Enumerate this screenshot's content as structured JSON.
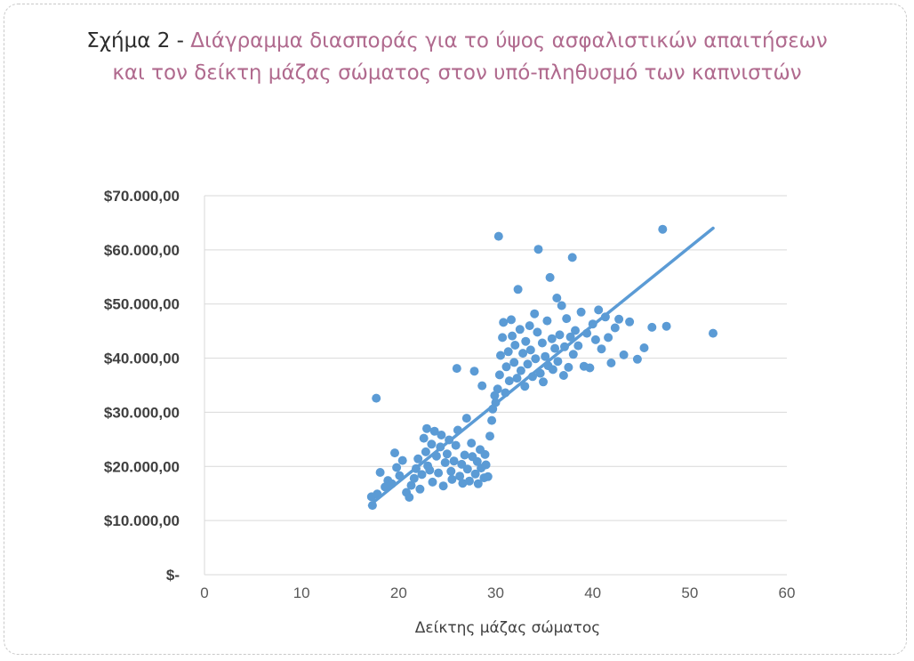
{
  "title": {
    "prefix": "Σχήμα 2 -",
    "line1": "Διάγραμμα διασποράς για το ύψος ασφαλιστικών απαιτήσεων",
    "line2": "και τον δείκτη μάζας σώματος στον υπό-πληθυσμό των καπνιστών"
  },
  "colors": {
    "points": "#5b9bd5",
    "trendline": "#5b9bd5",
    "grid": "#d9d9d9",
    "title_accent": "#b06a8e"
  },
  "chart_data": {
    "type": "scatter",
    "xlabel": "Δείκτης μάζας σώματος",
    "ylabel": "",
    "xlim": [
      0,
      60
    ],
    "ylim": [
      0,
      70000
    ],
    "x_ticks": [
      0,
      10,
      20,
      30,
      40,
      50,
      60
    ],
    "y_ticks": [
      0,
      10000,
      20000,
      30000,
      40000,
      50000,
      60000,
      70000
    ],
    "y_tick_labels": [
      "$-",
      "$10.000,00",
      "$20.000,00",
      "$30.000,00",
      "$40.000,00",
      "$50.000,00",
      "$60.000,00",
      "$70.000,00"
    ],
    "grid": "horizontal",
    "legend": "none",
    "trendline": {
      "x": [
        17,
        52.4
      ],
      "y": [
        12800,
        64000
      ]
    },
    "points": [
      [
        17.2,
        14400
      ],
      [
        17.3,
        12800
      ],
      [
        17.7,
        32600
      ],
      [
        17.8,
        14900
      ],
      [
        18.1,
        18900
      ],
      [
        18.6,
        16200
      ],
      [
        18.9,
        17400
      ],
      [
        19.3,
        16800
      ],
      [
        19.6,
        22500
      ],
      [
        19.8,
        19800
      ],
      [
        20.1,
        18300
      ],
      [
        20.4,
        21100
      ],
      [
        20.8,
        15200
      ],
      [
        21.1,
        14300
      ],
      [
        21.3,
        16500
      ],
      [
        21.6,
        17800
      ],
      [
        21.8,
        19600
      ],
      [
        22.0,
        21400
      ],
      [
        22.2,
        15800
      ],
      [
        22.4,
        18500
      ],
      [
        22.6,
        25200
      ],
      [
        22.8,
        22700
      ],
      [
        22.9,
        27000
      ],
      [
        23.0,
        20100
      ],
      [
        23.2,
        19300
      ],
      [
        23.4,
        24100
      ],
      [
        23.5,
        17100
      ],
      [
        23.7,
        26500
      ],
      [
        23.9,
        21900
      ],
      [
        24.1,
        18800
      ],
      [
        24.3,
        23600
      ],
      [
        24.4,
        25800
      ],
      [
        24.6,
        16400
      ],
      [
        24.8,
        20700
      ],
      [
        25.0,
        22300
      ],
      [
        25.2,
        24900
      ],
      [
        25.4,
        19100
      ],
      [
        25.5,
        17600
      ],
      [
        25.7,
        21000
      ],
      [
        25.9,
        23900
      ],
      [
        26.0,
        38100
      ],
      [
        26.1,
        26700
      ],
      [
        26.3,
        18200
      ],
      [
        26.5,
        20400
      ],
      [
        26.6,
        16900
      ],
      [
        26.8,
        22100
      ],
      [
        27.0,
        28900
      ],
      [
        27.1,
        19500
      ],
      [
        27.3,
        17300
      ],
      [
        27.5,
        24300
      ],
      [
        27.6,
        21800
      ],
      [
        27.8,
        37600
      ],
      [
        27.9,
        18600
      ],
      [
        28.1,
        20900
      ],
      [
        28.2,
        16800
      ],
      [
        28.4,
        23100
      ],
      [
        28.5,
        19700
      ],
      [
        28.6,
        34900
      ],
      [
        28.8,
        17900
      ],
      [
        28.9,
        22200
      ],
      [
        29.0,
        20300
      ],
      [
        29.2,
        18100
      ],
      [
        29.4,
        25600
      ],
      [
        29.6,
        28500
      ],
      [
        29.7,
        30600
      ],
      [
        29.9,
        33100
      ],
      [
        30.0,
        31800
      ],
      [
        30.2,
        34300
      ],
      [
        30.3,
        62500
      ],
      [
        30.4,
        36900
      ],
      [
        30.5,
        40500
      ],
      [
        30.7,
        43800
      ],
      [
        30.8,
        46600
      ],
      [
        31.0,
        33600
      ],
      [
        31.1,
        38400
      ],
      [
        31.3,
        41200
      ],
      [
        31.4,
        35800
      ],
      [
        31.6,
        47100
      ],
      [
        31.7,
        44100
      ],
      [
        31.9,
        39200
      ],
      [
        32.0,
        42400
      ],
      [
        32.2,
        36300
      ],
      [
        32.3,
        52700
      ],
      [
        32.5,
        45300
      ],
      [
        32.6,
        37700
      ],
      [
        32.8,
        40900
      ],
      [
        33.0,
        34800
      ],
      [
        33.1,
        43100
      ],
      [
        33.3,
        38900
      ],
      [
        33.5,
        46000
      ],
      [
        33.6,
        41500
      ],
      [
        33.8,
        36600
      ],
      [
        34.0,
        48200
      ],
      [
        34.1,
        39900
      ],
      [
        34.3,
        44800
      ],
      [
        34.4,
        60100
      ],
      [
        34.6,
        37200
      ],
      [
        34.8,
        42800
      ],
      [
        34.9,
        35600
      ],
      [
        35.1,
        40300
      ],
      [
        35.3,
        46900
      ],
      [
        35.4,
        38600
      ],
      [
        35.6,
        54900
      ],
      [
        35.8,
        43600
      ],
      [
        35.9,
        37900
      ],
      [
        36.1,
        41800
      ],
      [
        36.3,
        51100
      ],
      [
        36.4,
        39400
      ],
      [
        36.6,
        44300
      ],
      [
        36.8,
        49700
      ],
      [
        37.0,
        36800
      ],
      [
        37.1,
        42100
      ],
      [
        37.3,
        47300
      ],
      [
        37.5,
        38300
      ],
      [
        37.7,
        43900
      ],
      [
        37.9,
        58600
      ],
      [
        38.0,
        40700
      ],
      [
        38.2,
        45100
      ],
      [
        38.5,
        42300
      ],
      [
        38.8,
        48500
      ],
      [
        39.1,
        38500
      ],
      [
        39.4,
        44600
      ],
      [
        39.7,
        38200
      ],
      [
        40.0,
        46300
      ],
      [
        40.3,
        43400
      ],
      [
        40.6,
        48900
      ],
      [
        40.9,
        41700
      ],
      [
        41.3,
        47600
      ],
      [
        41.6,
        43800
      ],
      [
        41.9,
        39100
      ],
      [
        42.3,
        45600
      ],
      [
        42.7,
        47200
      ],
      [
        43.2,
        40600
      ],
      [
        43.8,
        46700
      ],
      [
        44.6,
        39800
      ],
      [
        45.3,
        41900
      ],
      [
        46.1,
        45700
      ],
      [
        47.2,
        63800
      ],
      [
        47.6,
        45900
      ],
      [
        52.4,
        44600
      ]
    ]
  }
}
